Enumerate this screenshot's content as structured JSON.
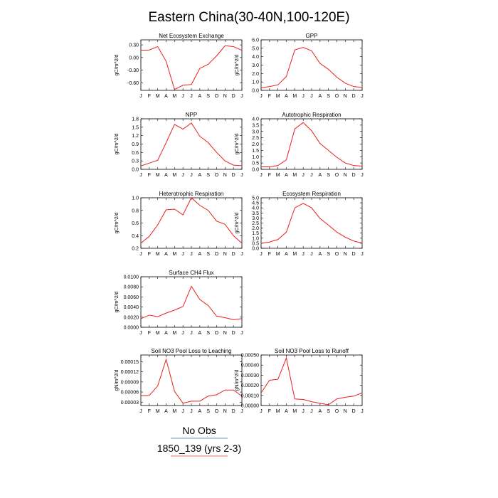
{
  "title": "Eastern China(30-40N,100-120E)",
  "colors": {
    "series": "#e8201a",
    "obs_line": "#6f8fc6",
    "case_line": "#e66a6a",
    "axis": "#000000"
  },
  "legend": {
    "obs_label": "No Obs",
    "case_label": "1850_139 (yrs 2-3)"
  },
  "chart_data": [
    {
      "type": "line",
      "title": "Net Ecosystem Exchange",
      "ylabel": "gC/m^2/d",
      "x": [
        "J",
        "F",
        "M",
        "A",
        "M",
        "J",
        "J",
        "A",
        "S",
        "O",
        "N",
        "D",
        "J"
      ],
      "ylim": [
        -0.78,
        0.42
      ],
      "yticks": [
        0.3,
        0.0,
        -0.3,
        -0.6
      ],
      "ytick_labels": [
        "0.30",
        "0.00",
        "-0.30",
        "-0.60"
      ],
      "series": [
        {
          "values": [
            0.17,
            0.18,
            0.26,
            -0.09,
            -0.76,
            -0.66,
            -0.64,
            -0.26,
            -0.16,
            0.04,
            0.28,
            0.26,
            0.17
          ]
        }
      ]
    },
    {
      "type": "line",
      "title": "GPP",
      "ylabel": "gC/m^2/d",
      "x": [
        "J",
        "F",
        "M",
        "A",
        "M",
        "J",
        "J",
        "A",
        "S",
        "O",
        "N",
        "D",
        "J"
      ],
      "ylim": [
        0.0,
        6.0
      ],
      "yticks": [
        0,
        1,
        2,
        3,
        4,
        5,
        6
      ],
      "ytick_labels": [
        "0.0",
        "1.0",
        "2.0",
        "3.0",
        "4.0",
        "5.0",
        "6.0"
      ],
      "series": [
        {
          "values": [
            0.3,
            0.45,
            0.65,
            1.65,
            4.8,
            5.1,
            4.7,
            3.2,
            2.5,
            1.55,
            0.85,
            0.45,
            0.35
          ]
        }
      ]
    },
    {
      "type": "line",
      "title": "NPP",
      "ylabel": "gC/m^2/d",
      "x": [
        "J",
        "F",
        "M",
        "A",
        "M",
        "J",
        "J",
        "A",
        "S",
        "O",
        "N",
        "D",
        "J"
      ],
      "ylim": [
        0.0,
        1.8
      ],
      "yticks": [
        0,
        0.3,
        0.6,
        0.9,
        1.2,
        1.5,
        1.8
      ],
      "ytick_labels": [
        "0.0",
        "0.3",
        "0.6",
        "0.9",
        "1.2",
        "1.5",
        "1.8"
      ],
      "series": [
        {
          "values": [
            0.12,
            0.22,
            0.32,
            0.95,
            1.6,
            1.43,
            1.65,
            1.18,
            0.95,
            0.6,
            0.3,
            0.15,
            0.13
          ]
        }
      ]
    },
    {
      "type": "line",
      "title": "Autotrophic Respiration",
      "ylabel": "gC/m^2/d",
      "x": [
        "J",
        "F",
        "M",
        "A",
        "M",
        "J",
        "J",
        "A",
        "S",
        "O",
        "N",
        "D",
        "J"
      ],
      "ylim": [
        0.0,
        4.0
      ],
      "yticks": [
        0,
        0.5,
        1,
        1.5,
        2,
        2.5,
        3,
        3.5,
        4
      ],
      "ytick_labels": [
        "0.0",
        "0.5",
        "1.0",
        "1.5",
        "2.0",
        "2.5",
        "3.0",
        "3.5",
        "4.0"
      ],
      "series": [
        {
          "values": [
            0.2,
            0.2,
            0.3,
            0.75,
            3.2,
            3.7,
            3.05,
            2.05,
            1.5,
            0.95,
            0.5,
            0.3,
            0.25
          ]
        }
      ]
    },
    {
      "type": "line",
      "title": "Heterotrophic Respiration",
      "ylabel": "gC/m^2/d",
      "x": [
        "J",
        "F",
        "M",
        "A",
        "M",
        "J",
        "J",
        "A",
        "S",
        "O",
        "N",
        "D",
        "J"
      ],
      "ylim": [
        0.2,
        1.0
      ],
      "yticks": [
        0.2,
        0.4,
        0.6,
        0.8,
        1.0
      ],
      "ytick_labels": [
        "0.2",
        "0.4",
        "0.6",
        "0.8",
        "1.0"
      ],
      "series": [
        {
          "values": [
            0.28,
            0.39,
            0.57,
            0.81,
            0.82,
            0.73,
            1.0,
            0.88,
            0.8,
            0.63,
            0.58,
            0.4,
            0.28
          ]
        }
      ]
    },
    {
      "type": "line",
      "title": "Ecosystem Respiration",
      "ylabel": "gC/m^2/d",
      "x": [
        "J",
        "F",
        "M",
        "A",
        "M",
        "J",
        "J",
        "A",
        "S",
        "O",
        "N",
        "D",
        "J"
      ],
      "ylim": [
        0.0,
        5.0
      ],
      "yticks": [
        0,
        0.5,
        1,
        1.5,
        2,
        2.5,
        3,
        3.5,
        4,
        4.5,
        5
      ],
      "ytick_labels": [
        "0.0",
        "0.5",
        "1.0",
        "1.5",
        "2.0",
        "2.5",
        "3.0",
        "3.5",
        "4.0",
        "4.5",
        "5.0"
      ],
      "series": [
        {
          "values": [
            0.5,
            0.62,
            0.87,
            1.6,
            4.0,
            4.45,
            4.0,
            2.95,
            2.3,
            1.6,
            1.1,
            0.72,
            0.52
          ]
        }
      ]
    },
    {
      "type": "line",
      "title": "Surface CH4 Flux",
      "ylabel": "gC/m^2/d",
      "x": [
        "J",
        "F",
        "M",
        "A",
        "M",
        "J",
        "J",
        "A",
        "S",
        "O",
        "N",
        "D",
        "J"
      ],
      "ylim": [
        0.0,
        0.01
      ],
      "yticks": [
        0,
        0.002,
        0.004,
        0.006,
        0.008,
        0.01
      ],
      "ytick_labels": [
        "0.0000",
        "0.0020",
        "0.0040",
        "0.0060",
        "0.0080",
        "0.0100"
      ],
      "series": [
        {
          "values": [
            0.0017,
            0.0024,
            0.0021,
            0.0028,
            0.0034,
            0.0041,
            0.0081,
            0.0055,
            0.0043,
            0.0022,
            0.0019,
            0.0015,
            0.0017
          ]
        }
      ]
    },
    {
      "type": "line",
      "title": "Soil NO3 Pool Loss to Leaching",
      "ylabel": "gN/m^2/d",
      "x": [
        "J",
        "F",
        "M",
        "A",
        "M",
        "J",
        "J",
        "A",
        "S",
        "O",
        "N",
        "D",
        "J"
      ],
      "ylim": [
        2e-05,
        0.00017
      ],
      "yticks": [
        3e-05,
        6e-05,
        9e-05,
        0.00012,
        0.00015
      ],
      "ytick_labels": [
        "0.00003",
        "0.00006",
        "0.00009",
        "0.00012",
        "0.00015"
      ],
      "series": [
        {
          "values": [
            4.9e-05,
            5e-05,
            7.8e-05,
            0.000157,
            6.2e-05,
            2.7e-05,
            3.3e-05,
            3.3e-05,
            4.8e-05,
            5.2e-05,
            6.6e-05,
            6.6e-05,
            4.8e-05
          ]
        }
      ]
    },
    {
      "type": "line",
      "title": "Soil NO3 Pool Loss to Runoff",
      "ylabel": "gN/m^2/d",
      "x": [
        "J",
        "F",
        "M",
        "A",
        "M",
        "J",
        "J",
        "A",
        "S",
        "O",
        "N",
        "D",
        "J"
      ],
      "ylim": [
        0.0,
        0.0005
      ],
      "yticks": [
        0,
        0.0001,
        0.0002,
        0.0003,
        0.0004,
        0.0005
      ],
      "ytick_labels": [
        "0.00000",
        "0.00010",
        "0.00020",
        "0.00030",
        "0.00040",
        "0.00050"
      ],
      "series": [
        {
          "values": [
            0.000125,
            0.00025,
            0.00026,
            0.00047,
            6.5e-05,
            6e-05,
            3.8e-05,
            2.2e-05,
            8e-06,
            6.5e-05,
            8.2e-05,
            9.3e-05,
            0.000125
          ]
        }
      ]
    }
  ]
}
